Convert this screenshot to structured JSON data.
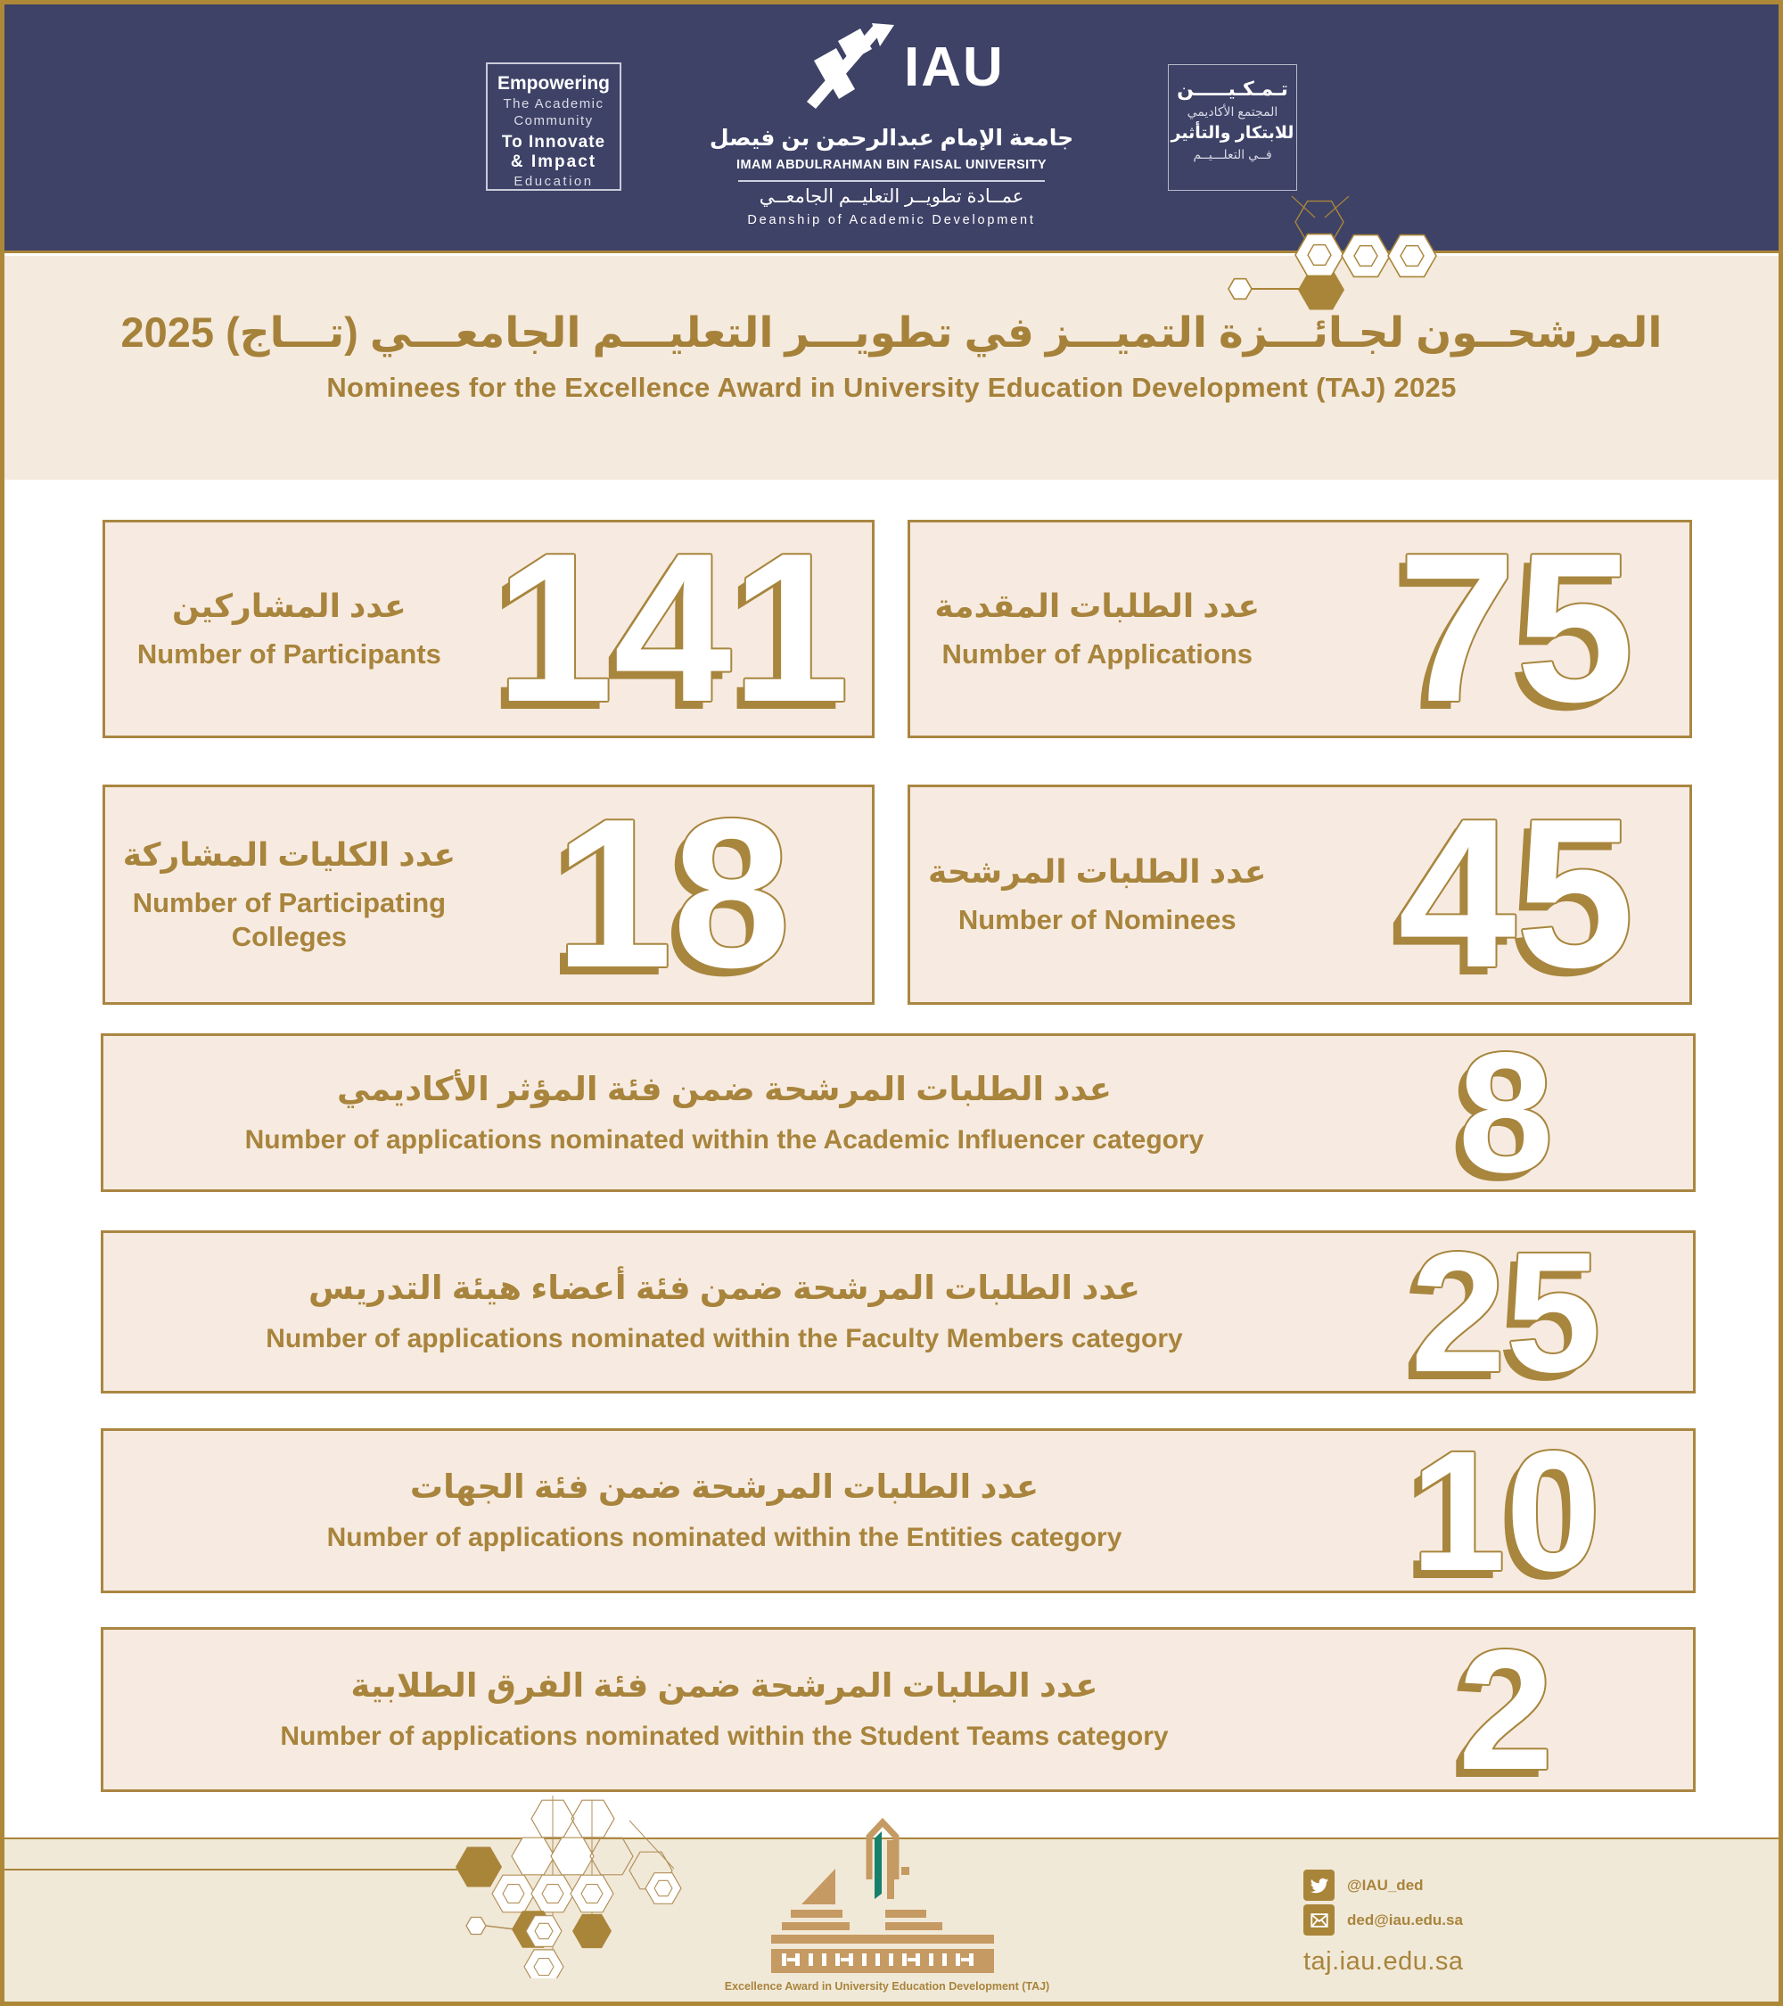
{
  "chart_data": {
    "type": "table",
    "title": "Nominees for the Excellence Award in University Education Development (TAJ) 2025",
    "title_ar": "المرشحون لجائزة التميز في تطوير التعليم الجامعي (تاج) 2025",
    "categories": [
      "Number of Participants",
      "Number of Applications",
      "Number of Participating Colleges",
      "Number of Nominees",
      "Number of applications nominated within the Academic Influencer category",
      "Number of applications nominated within the Faculty Members category",
      "Number of applications nominated within the Entities category",
      "Number of applications nominated within the Student Teams category"
    ],
    "values": [
      141,
      75,
      18,
      45,
      8,
      25,
      10,
      2
    ]
  },
  "title": {
    "ar": "المرشحــون لجـائـــزة التميـــز في تطويـــر التعليـــم الجامعـــي (تـــاج) 2025",
    "en": "Nominees for the Excellence Award in University Education Development (TAJ)  2025"
  },
  "header": {
    "motto_en": {
      "line1": "Empowering",
      "line2": "The Academic",
      "line3": "Community",
      "line4": "To Innovate",
      "line5": "& Impact",
      "line6": "Education"
    },
    "university": {
      "acronym": "IAU",
      "name_ar": "جامعة الإمام عبدالرحمن بن فيصل",
      "name_en": "IMAM ABDULRAHMAN BIN FAISAL UNIVERSITY",
      "dept_ar": "عمــادة تطويــر التعليــم الجامعــي",
      "dept_en": "Deanship of Academic Development"
    },
    "motto_ar": {
      "line1": "تـمـكـيـــــن",
      "line2": "المجتمع الأكاديمي",
      "line3": "للابتكار والتأثير",
      "line4": "فــي التعلـــيــم"
    }
  },
  "stat_cards": [
    {
      "label_ar": "عدد المشاركين",
      "label_en": "Number of Participants",
      "value": "141"
    },
    {
      "label_ar": "عدد الطلبات المقدمة",
      "label_en": "Number of Applications",
      "value": "75"
    },
    {
      "label_ar": "عدد الكليات المشاركة",
      "label_en": "Number of Participating Colleges",
      "value": "18"
    },
    {
      "label_ar": "عدد الطلبات المرشحة",
      "label_en": "Number of Nominees",
      "value": "45"
    }
  ],
  "stat_rows": [
    {
      "label_ar": "عدد الطلبات المرشحة ضمن فئة المؤثر الأكاديمي",
      "label_en": "Number of applications nominated within the Academic Influencer category",
      "value": "8"
    },
    {
      "label_ar": "عدد الطلبات المرشحة ضمن فئة أعضاء هيئة التدريس",
      "label_en": "Number of applications nominated within the Faculty Members category",
      "value": "25"
    },
    {
      "label_ar": "عدد الطلبات المرشحة ضمن فئة الجهات",
      "label_en": "Number of applications nominated within the Entities category",
      "value": "10"
    },
    {
      "label_ar": "عدد الطلبات المرشحة ضمن فئة الفرق الطلابية",
      "label_en": "Number of applications nominated within the Student Teams category",
      "value": "2"
    }
  ],
  "footer": {
    "taj_caption": "Excellence Award in University Education Development (TAJ)",
    "twitter": "@IAU_ded",
    "email": "ded@iau.edu.sa",
    "website": "taj.iau.edu.sa"
  },
  "colors": {
    "navy": "#3e4267",
    "gold": "#a8843c",
    "gold_line": "#a98539",
    "cream_band": "#f5eade",
    "card_bg": "#f7ebe1",
    "footer_bg": "#f1e9d8",
    "logo_tan": "#c59a63",
    "logo_teal": "#16806c",
    "white": "#ffffff"
  }
}
